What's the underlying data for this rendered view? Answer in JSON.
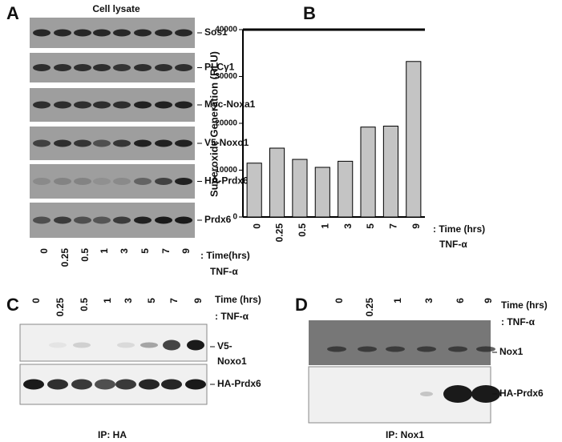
{
  "panel_a": {
    "letter": "A",
    "title": "Cell lysate",
    "lanes": [
      "0",
      "0.25",
      "0.5",
      "1",
      "3",
      "5",
      "7",
      "9"
    ],
    "rows": [
      "Sos1",
      "PLCγ1",
      "Myc-Noxa1",
      "V5-Noxo1",
      "HA-Prdx6",
      "Prdx6"
    ],
    "time_label": ": Time(hrs)",
    "treatment": "TNF-α"
  },
  "chart_data": {
    "type": "bar",
    "letter": "B",
    "y_label": "Superoxide Generation (RLU)",
    "categories": [
      "0",
      "0.25",
      "0.5",
      "1",
      "3",
      "5",
      "7",
      "9"
    ],
    "values": [
      11500,
      14700,
      12300,
      10600,
      11900,
      19200,
      19400,
      33200
    ],
    "color": "#c4c4c4",
    "ylim": [
      0,
      40000
    ],
    "yticks": [
      0,
      10000,
      20000,
      30000,
      40000
    ],
    "time_label": ": Time (hrs)",
    "treatment": "TNF-α"
  },
  "panel_c": {
    "letter": "C",
    "lanes": [
      "0",
      "0.25",
      "0.5",
      "1",
      "3",
      "5",
      "7",
      "9"
    ],
    "time_label": "Time (hrs)",
    "treatment": ": TNF-α",
    "rows": [
      "V5-",
      "Noxo1",
      "HA-Prdx6"
    ],
    "footer": "IP: HA"
  },
  "panel_d": {
    "letter": "D",
    "lanes": [
      "0",
      "0.25",
      "1",
      "3",
      "6",
      "9"
    ],
    "time_label": "Time (hrs)",
    "treatment": ": TNF-α",
    "rows": [
      "Nox1",
      "HA-Prdx6"
    ],
    "footer": "IP: Nox1"
  }
}
